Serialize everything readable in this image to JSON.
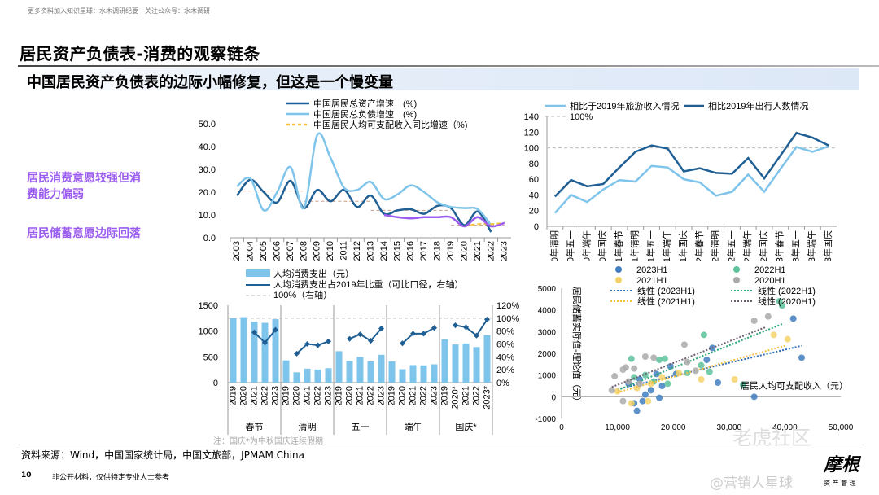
{
  "header": {
    "top_note": "更多资料加入知识星球：水木调研纪要　关注公众号：水木调研",
    "title": "居民资产负债表-消费的观察链条",
    "subtitle": "中国居民资产负债表的边际小幅修复，但这是一个慢变量"
  },
  "side_notes": [
    "居民消费意愿较强但消费能力偏弱",
    "居民储蓄意愿边际回落"
  ],
  "footer": {
    "note": "注：国庆*为中秋国庆连续假期",
    "source": "资料来源：Wind，中国国家统计局，中国文旅部，JPMAM China",
    "page": "10",
    "disclaimer": "非公开材料，仅供特定专业人士参考",
    "watermark1": "老虎社区",
    "watermark2": "@营销人星球",
    "logo": "摩根",
    "logo_sub": "资 产 管 理"
  },
  "colors": {
    "dark": "#1f5f94",
    "light": "#7fc4ea",
    "yellow": "#f5c242",
    "purple": "#9b5cf0",
    "grey": "#bbbbbb"
  },
  "chart_data": [
    {
      "type": "line",
      "ylim": [
        0,
        50
      ],
      "yticks": [
        "0.0",
        "10.0",
        "20.0",
        "30.0",
        "40.0",
        "50.0"
      ],
      "categories": [
        "2003",
        "2004",
        "2005",
        "2006",
        "2007",
        "2008",
        "2009",
        "2010",
        "2011",
        "2012",
        "2013",
        "2014",
        "2015",
        "2016",
        "2017",
        "2018",
        "2019",
        "2020",
        "2021",
        "2022",
        "2023"
      ],
      "series": [
        {
          "name": "中国居民总资产增速　(%)",
          "color": "#1f5f94",
          "values": [
            18.5,
            25.5,
            20,
            15.5,
            25,
            13,
            21,
            16,
            21,
            13.5,
            18.5,
            10.5,
            12,
            12.5,
            10.5,
            14,
            13,
            5.5,
            11.5,
            2.5,
            null
          ]
        },
        {
          "name": "中国居民总负债增速　(%)",
          "color": "#7fc4ea",
          "values": [
            22.5,
            26,
            12,
            20,
            31,
            13,
            45,
            35,
            22,
            21,
            24.5,
            17,
            19,
            23,
            20,
            15.5,
            13.5,
            13,
            12.5,
            5.5,
            null
          ]
        },
        {
          "name": "中国居民人均可支配收入同比增速（%)",
          "color": "#f5c242",
          "dashed": true,
          "values": [
            null,
            null,
            null,
            null,
            null,
            null,
            null,
            null,
            null,
            null,
            null,
            null,
            null,
            null,
            null,
            null,
            null,
            5,
            6,
            6,
            6.5
          ]
        },
        {
          "name": "",
          "color": "#9b5cf0",
          "values": [
            null,
            null,
            null,
            null,
            null,
            null,
            null,
            null,
            null,
            null,
            null,
            10,
            9,
            8.5,
            9,
            9,
            9,
            5,
            9,
            5,
            6.5
          ]
        }
      ],
      "reference_levels": [
        {
          "from": "2003",
          "to": "2008",
          "value": 20.5
        },
        {
          "from": "2008",
          "to": "2013",
          "value": 16
        },
        {
          "from": "2013",
          "to": "2019",
          "value": 12
        },
        {
          "from": "2019",
          "to": "2023",
          "value": 5.5
        }
      ]
    },
    {
      "type": "line",
      "ylim": [
        0,
        140
      ],
      "yticks": [
        "0",
        "20",
        "40",
        "60",
        "80",
        "100",
        "120",
        "140"
      ],
      "categories": [
        "2020年清明",
        "2020年五一",
        "2020年端午",
        "2020年国庆",
        "2021年春节",
        "2021年清明",
        "2021年五一",
        "2021年端午",
        "2021年国庆",
        "2022年春节",
        "2022年清明",
        "2022年五一",
        "2022年端午",
        "2022年国庆",
        "2023年春节",
        "2023年五一",
        "2023年端午",
        "2023年国庆"
      ],
      "series": [
        {
          "name": "相比于2019年旅游收入情况",
          "color": "#7fc4ea",
          "values": [
            17,
            40,
            31,
            47,
            59,
            57,
            77,
            75,
            60,
            56,
            39,
            44,
            66,
            44,
            73,
            101,
            95,
            102
          ]
        },
        {
          "name": "相比2019年出行人数情况",
          "color": "#1f5f94",
          "values": [
            38,
            59,
            51,
            54,
            75,
            95,
            103,
            99,
            70,
            74,
            68,
            67,
            87,
            61,
            90,
            119,
            113,
            103
          ]
        }
      ],
      "reference": {
        "name": "100%",
        "value": 100
      }
    },
    {
      "type": "bar",
      "ylim": [
        0,
        1500
      ],
      "y2lim": [
        0,
        120
      ],
      "yticks": [
        "0",
        "500",
        "1000",
        "1500"
      ],
      "y2ticks": [
        "0%",
        "20%",
        "40%",
        "60%",
        "80%",
        "100%",
        "120%"
      ],
      "groups": [
        {
          "name": "春节",
          "years": [
            "2019",
            "2020",
            "2021",
            "2022",
            "2023"
          ],
          "spend": [
            1250,
            1270,
            1180,
            1160,
            1230
          ],
          "pct": [
            null,
            null,
            78,
            62,
            82
          ]
        },
        {
          "name": "清明",
          "years": [
            "2019",
            "2020",
            "2021",
            "2022",
            "2023"
          ],
          "spend": [
            430,
            200,
            270,
            255,
            280
          ],
          "pct": [
            null,
            45,
            60,
            58,
            64
          ]
        },
        {
          "name": "五一",
          "years": [
            "2019",
            "2020",
            "2021",
            "2022",
            "2023"
          ],
          "spend": [
            610,
            420,
            500,
            410,
            540
          ],
          "pct": [
            null,
            68,
            75,
            65,
            84
          ]
        },
        {
          "name": "端午",
          "years": [
            "2019",
            "2020",
            "2021",
            "2022",
            "2023"
          ],
          "spend": [
            410,
            260,
            340,
            335,
            355
          ],
          "pct": [
            null,
            61,
            76,
            76,
            85
          ]
        },
        {
          "name": "国庆*",
          "years": [
            "2019",
            "2020*",
            "2021",
            "2022",
            "2023*"
          ],
          "spend": [
            840,
            740,
            760,
            690,
            920
          ],
          "pct": [
            null,
            89,
            86,
            73,
            98
          ]
        }
      ],
      "legend": [
        "人均消费支出（元）",
        "人均消费支出占2019年比重（可比口径，右轴）",
        "100%（右轴）"
      ]
    },
    {
      "type": "scatter",
      "xlim": [
        0,
        50000
      ],
      "ylim": [
        -1000,
        5000
      ],
      "xticks": [
        "0",
        "10,000",
        "20,000",
        "30,000",
        "40,000",
        "50,000"
      ],
      "yticks": [
        "-1000",
        "0",
        "1000",
        "2000",
        "3000",
        "4000",
        "5000"
      ],
      "xlabel": "居民人均可支配收入（元）",
      "ylabel": "居民储蓄实际值-理论值（元）",
      "series": [
        {
          "name": "2023H1",
          "color": "#3f7fc0",
          "trend_name": "线性 (2023H1)",
          "trend": [
            [
              10000,
              350
            ],
            [
              43000,
              2350
            ]
          ],
          "points": [
            [
              13500,
              -650
            ],
            [
              13000,
              -300
            ],
            [
              14500,
              -200
            ],
            [
              15000,
              100
            ],
            [
              16000,
              300
            ],
            [
              17500,
              -50
            ],
            [
              17000,
              1050
            ],
            [
              19500,
              1400
            ],
            [
              20500,
              1050
            ],
            [
              26000,
              1700
            ],
            [
              27000,
              2250
            ],
            [
              28000,
              650
            ],
            [
              34500,
              0
            ],
            [
              41500,
              3600
            ],
            [
              43000,
              1800
            ],
            [
              12000,
              600
            ],
            [
              14000,
              800
            ],
            [
              18000,
              500
            ]
          ]
        },
        {
          "name": "2022H1",
          "color": "#5cc29a",
          "trend_name": "线性 (2022H1)",
          "trend": [
            [
              10000,
              300
            ],
            [
              39500,
              3350
            ]
          ],
          "points": [
            [
              12500,
              1750
            ],
            [
              17500,
              1700
            ],
            [
              18500,
              1750
            ],
            [
              25000,
              1450
            ],
            [
              25500,
              2850
            ],
            [
              26500,
              1150
            ],
            [
              32500,
              550
            ],
            [
              39000,
              4400
            ],
            [
              39500,
              4200
            ],
            [
              13000,
              900
            ],
            [
              15000,
              1000
            ],
            [
              16500,
              700
            ],
            [
              19000,
              600
            ],
            [
              22500,
              1100
            ]
          ]
        },
        {
          "name": "2021H1",
          "color": "#f5d26a",
          "trend_name": "线性 (2021H1)",
          "trend": [
            [
              10000,
              200
            ],
            [
              40000,
              2350
            ]
          ],
          "points": [
            [
              10000,
              250
            ],
            [
              12500,
              -300
            ],
            [
              15500,
              -200
            ],
            [
              25000,
              800
            ],
            [
              31000,
              800
            ],
            [
              38000,
              2850
            ],
            [
              40500,
              2650
            ],
            [
              13500,
              400
            ],
            [
              16000,
              600
            ],
            [
              18000,
              900
            ],
            [
              21000,
              1100
            ]
          ]
        },
        {
          "name": "2020H1",
          "color": "#aaaaaa",
          "trend_name": "线性 (2020H1)",
          "trend": [
            [
              9000,
              450
            ],
            [
              36500,
              3200
            ]
          ],
          "points": [
            [
              9000,
              300
            ],
            [
              9500,
              950
            ],
            [
              11000,
              1250
            ],
            [
              11500,
              1350
            ],
            [
              13000,
              1300
            ],
            [
              15000,
              1850
            ],
            [
              16500,
              1800
            ],
            [
              22000,
              2400
            ],
            [
              22500,
              1600
            ],
            [
              24000,
              1200
            ],
            [
              34500,
              3500
            ],
            [
              37000,
              3700
            ],
            [
              11000,
              -200
            ],
            [
              12000,
              700
            ],
            [
              14000,
              600
            ]
          ]
        }
      ]
    }
  ]
}
